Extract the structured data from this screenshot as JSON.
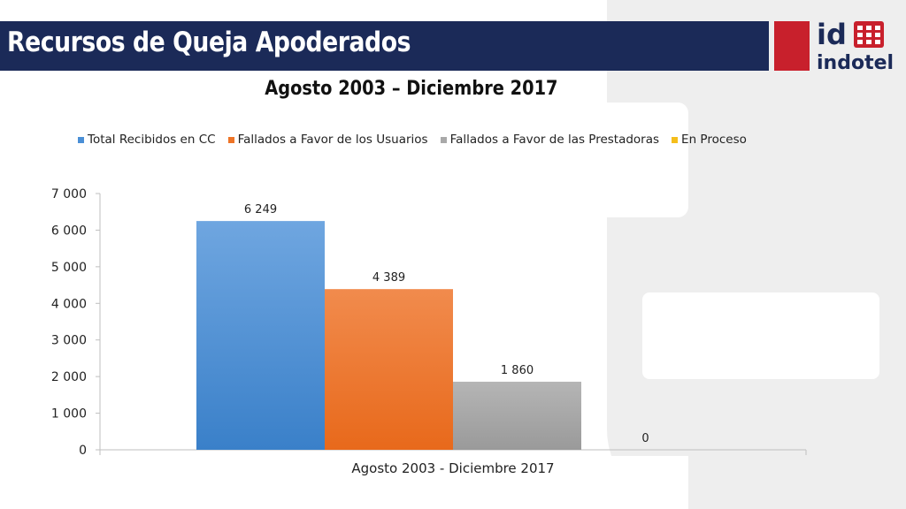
{
  "header": {
    "title": "Recursos de Queja Apoderados",
    "logo_top": "id",
    "logo_bottom": "indotel"
  },
  "colors": {
    "title_bar": "#1b2a58",
    "logo_red": "#c8202c",
    "series": [
      "#4a8fd6",
      "#ee7427",
      "#a9a9a9",
      "#f5be1b"
    ]
  },
  "chart_data": {
    "type": "bar",
    "title": "Agosto 2003 – Diciembre 2017",
    "categories": [
      "Agosto 2003 - Diciembre 2017"
    ],
    "series": [
      {
        "name": "Total Recibidos en CC",
        "values": [
          6249
        ],
        "label": "6 249"
      },
      {
        "name": "Fallados a Favor de los Usuarios",
        "values": [
          4389
        ],
        "label": "4 389"
      },
      {
        "name": "Fallados a Favor de las Prestadoras",
        "values": [
          1860
        ],
        "label": "1 860"
      },
      {
        "name": "En Proceso",
        "values": [
          0
        ],
        "label": "0"
      }
    ],
    "ylim": [
      0,
      7000
    ],
    "yticks": [
      0,
      1000,
      2000,
      3000,
      4000,
      5000,
      6000,
      7000
    ],
    "ytick_labels": [
      "0",
      "1 000",
      "2 000",
      "3 000",
      "4 000",
      "5 000",
      "6 000",
      "7 000"
    ],
    "legend_position": "top",
    "grid": false
  }
}
